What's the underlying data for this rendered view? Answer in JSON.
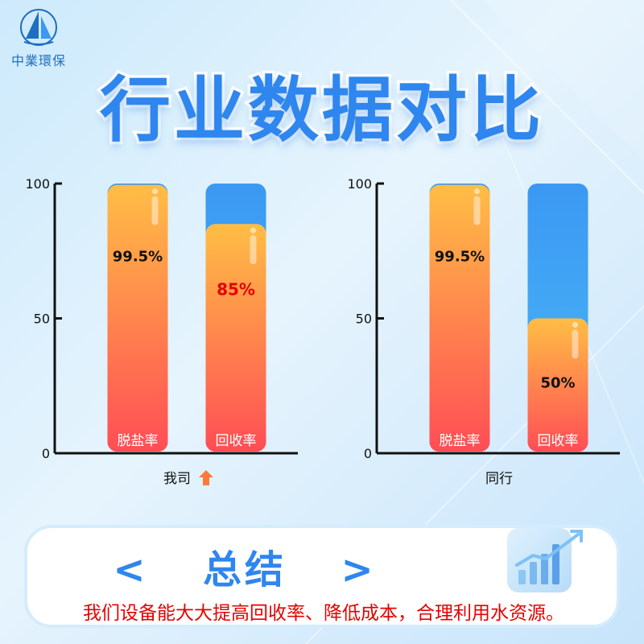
{
  "brand": {
    "name": "中業環保",
    "logo_icon": "sailboat-icon"
  },
  "title": "行业数据对比",
  "colors": {
    "accent": "#2e86ee",
    "bar_blue_top": "#3b98f3",
    "bar_blue_bottom": "#4ab8f5",
    "bar_orange_top": "#ffbe45",
    "bar_red_bottom": "#ff4d55",
    "highlight_text": "#e60000"
  },
  "chart_data": [
    {
      "type": "bar",
      "title": "",
      "xlabel": "我司",
      "xlabel_icon": "up-arrow-icon",
      "ylabel": "",
      "ylim": [
        0,
        100
      ],
      "yticks": [
        "0",
        "50",
        "100"
      ],
      "categories": [
        "脱盐率",
        "回收率"
      ],
      "series": [
        {
          "values": [
            99.5,
            85
          ]
        }
      ],
      "data_labels": [
        "99.5%",
        "85%"
      ],
      "background_max": 100,
      "label_colors": [
        "#111111",
        "#e60000"
      ]
    },
    {
      "type": "bar",
      "title": "",
      "xlabel": "同行",
      "ylabel": "",
      "ylim": [
        0,
        100
      ],
      "yticks": [
        "0",
        "50",
        "100"
      ],
      "categories": [
        "脱盐率",
        "回收率"
      ],
      "series": [
        {
          "values": [
            99.5,
            50
          ]
        }
      ],
      "data_labels": [
        "99.5%",
        "50%"
      ],
      "background_max": 100,
      "label_colors": [
        "#111111",
        "#111111"
      ]
    }
  ],
  "summary": {
    "title_left": "<",
    "title": "总结",
    "title_right": ">",
    "text": "我们设备能大大提高回收率、降低成本，合理利用水资源。",
    "icon": "growth-chart-icon"
  }
}
